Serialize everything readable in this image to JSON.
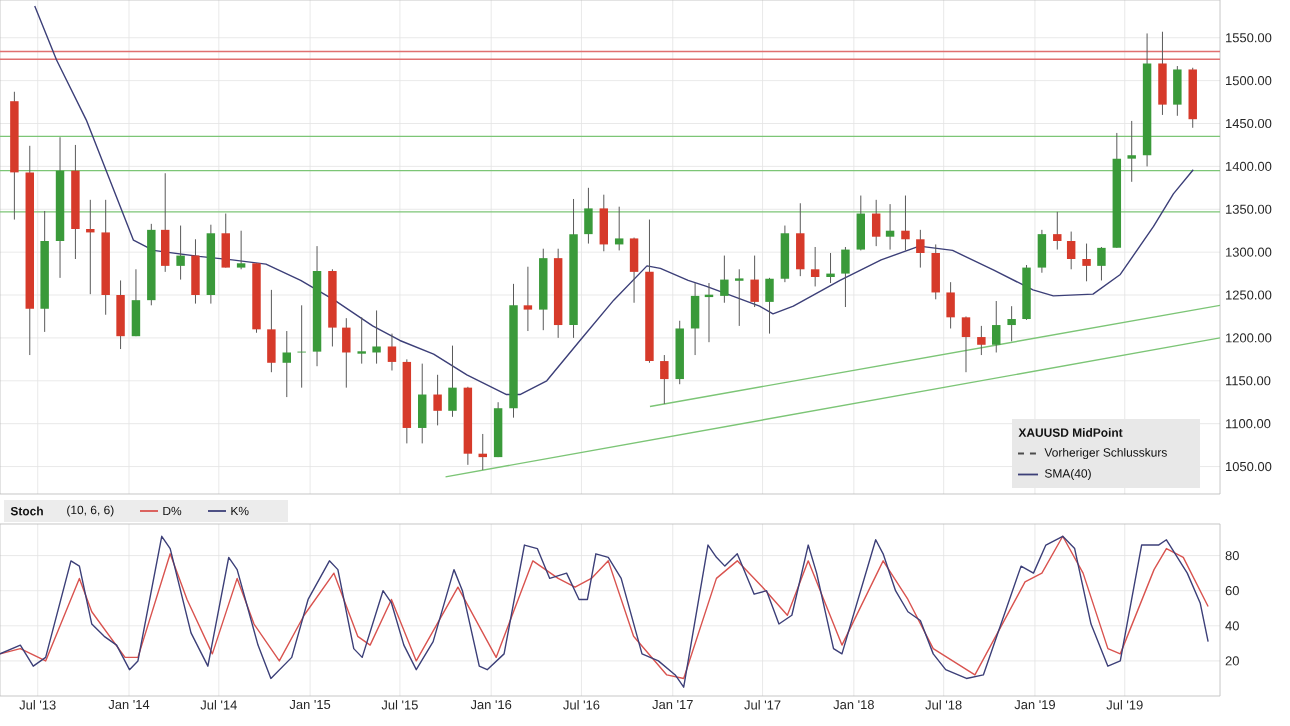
{
  "chart_data": [
    {
      "type": "candlestick",
      "legend_title": "XAUUSD MidPoint",
      "annotations": [
        "Vorheriger Schlusskurs"
      ],
      "legend": "bottom right",
      "grid": true,
      "tick_labels": "y",
      "xlim": [
        "2013-04-16",
        "2020-01-09"
      ],
      "ylim": [
        1018,
        1594
      ],
      "xticks": [
        {
          "value": "2013-07-01",
          "label": null
        },
        {
          "value": "2014-01-01",
          "label": null
        },
        {
          "value": "2014-07-01",
          "label": null
        },
        {
          "value": "2015-01-01",
          "label": null
        },
        {
          "value": "2015-07-01",
          "label": null
        },
        {
          "value": "2016-01-01",
          "label": null
        },
        {
          "value": "2016-07-01",
          "label": null
        },
        {
          "value": "2017-01-01",
          "label": null
        },
        {
          "value": "2017-07-01",
          "label": null
        },
        {
          "value": "2018-01-01",
          "label": null
        },
        {
          "value": "2018-07-01",
          "label": null
        },
        {
          "value": "2019-01-01",
          "label": null
        },
        {
          "value": "2019-07-01",
          "label": null
        }
      ],
      "yticks": [
        {
          "value": 1050,
          "label": "1050.00"
        },
        {
          "value": 1100,
          "label": "1100.00"
        },
        {
          "value": 1150,
          "label": "1150.00"
        },
        {
          "value": 1200,
          "label": "1200.00"
        },
        {
          "value": 1250,
          "label": "1250.00"
        },
        {
          "value": 1300,
          "label": "1300.00"
        },
        {
          "value": 1350,
          "label": "1350.00"
        },
        {
          "value": 1400,
          "label": "1400.00"
        },
        {
          "value": 1450,
          "label": "1450.00"
        },
        {
          "value": 1500,
          "label": "1500.00"
        },
        {
          "value": 1550,
          "label": "1550.00"
        }
      ],
      "x": [
        "2013-05-15",
        "2013-06-15",
        "2013-07-15",
        "2013-08-15",
        "2013-09-15",
        "2013-10-15",
        "2013-11-15",
        "2013-12-15",
        "2014-01-15",
        "2014-02-15",
        "2014-03-15",
        "2014-04-15",
        "2014-05-15",
        "2014-06-15",
        "2014-07-15",
        "2014-08-15",
        "2014-09-15",
        "2014-10-15",
        "2014-11-15",
        "2014-12-15",
        "2015-01-15",
        "2015-02-15",
        "2015-03-15",
        "2015-04-15",
        "2015-05-15",
        "2015-06-15",
        "2015-07-15",
        "2015-08-15",
        "2015-09-15",
        "2015-10-15",
        "2015-11-15",
        "2015-12-15",
        "2016-01-15",
        "2016-02-15",
        "2016-03-15",
        "2016-04-15",
        "2016-05-15",
        "2016-06-15",
        "2016-07-15",
        "2016-08-15",
        "2016-09-15",
        "2016-10-15",
        "2016-11-15",
        "2016-12-15",
        "2017-01-15",
        "2017-02-15",
        "2017-03-15",
        "2017-04-15",
        "2017-05-15",
        "2017-06-15",
        "2017-07-15",
        "2017-08-15",
        "2017-09-15",
        "2017-10-15",
        "2017-11-15",
        "2017-12-15",
        "2018-01-15",
        "2018-02-15",
        "2018-03-15",
        "2018-04-15",
        "2018-05-15",
        "2018-06-15",
        "2018-07-15",
        "2018-08-15",
        "2018-09-15",
        "2018-10-15",
        "2018-11-15",
        "2018-12-15",
        "2019-01-15",
        "2019-02-15",
        "2019-03-15",
        "2019-04-15",
        "2019-05-15",
        "2019-06-15",
        "2019-07-15",
        "2019-08-15",
        "2019-09-15",
        "2019-10-15",
        "2019-11-15"
      ],
      "ohlc": [
        [
          1476,
          1487,
          1338,
          1393
        ],
        [
          1393,
          1424,
          1180,
          1234
        ],
        [
          1234,
          1348,
          1207,
          1313
        ],
        [
          1313,
          1434,
          1270,
          1395
        ],
        [
          1395,
          1425,
          1292,
          1327
        ],
        [
          1327,
          1361,
          1251,
          1323
        ],
        [
          1323,
          1361,
          1227,
          1250
        ],
        [
          1250,
          1267,
          1187,
          1202
        ],
        [
          1202,
          1280,
          1202,
          1244
        ],
        [
          1244,
          1333,
          1238,
          1326
        ],
        [
          1326,
          1392,
          1277,
          1284
        ],
        [
          1284,
          1331,
          1268,
          1296
        ],
        [
          1296,
          1315,
          1240,
          1250
        ],
        [
          1250,
          1332,
          1240,
          1322
        ],
        [
          1322,
          1345,
          1282,
          1282
        ],
        [
          1282,
          1325,
          1280,
          1287
        ],
        [
          1287,
          1287,
          1206,
          1210
        ],
        [
          1210,
          1256,
          1160,
          1171
        ],
        [
          1171,
          1208,
          1131,
          1183
        ],
        [
          1183,
          1238,
          1142,
          1184
        ],
        [
          1184,
          1307,
          1167,
          1278
        ],
        [
          1278,
          1280,
          1190,
          1212
        ],
        [
          1212,
          1223,
          1142,
          1183
        ],
        [
          1183,
          1224,
          1170,
          1183
        ],
        [
          1183,
          1232,
          1170,
          1190
        ],
        [
          1190,
          1205,
          1162,
          1172
        ],
        [
          1172,
          1175,
          1077,
          1095
        ],
        [
          1095,
          1170,
          1077,
          1134
        ],
        [
          1134,
          1157,
          1098,
          1115
        ],
        [
          1115,
          1191,
          1108,
          1142
        ],
        [
          1142,
          1143,
          1052,
          1065
        ],
        [
          1065,
          1088,
          1046,
          1061
        ],
        [
          1061,
          1125,
          1061,
          1118
        ],
        [
          1118,
          1263,
          1107,
          1238
        ],
        [
          1238,
          1283,
          1208,
          1233
        ],
        [
          1233,
          1304,
          1209,
          1293
        ],
        [
          1293,
          1304,
          1200,
          1215
        ],
        [
          1215,
          1362,
          1200,
          1321
        ],
        [
          1321,
          1375,
          1310,
          1351
        ],
        [
          1351,
          1367,
          1301,
          1309
        ],
        [
          1309,
          1353,
          1302,
          1316
        ],
        [
          1316,
          1317,
          1241,
          1277
        ],
        [
          1277,
          1338,
          1171,
          1173
        ],
        [
          1173,
          1180,
          1123,
          1152
        ],
        [
          1152,
          1220,
          1146,
          1211
        ],
        [
          1211,
          1264,
          1180,
          1249
        ],
        [
          1249,
          1264,
          1195,
          1249
        ],
        [
          1249,
          1296,
          1241,
          1268
        ],
        [
          1268,
          1280,
          1214,
          1268
        ],
        [
          1268,
          1296,
          1236,
          1242
        ],
        [
          1242,
          1270,
          1205,
          1269
        ],
        [
          1269,
          1331,
          1265,
          1322
        ],
        [
          1322,
          1357,
          1272,
          1280
        ],
        [
          1280,
          1306,
          1260,
          1271
        ],
        [
          1271,
          1299,
          1264,
          1275
        ],
        [
          1275,
          1306,
          1236,
          1303
        ],
        [
          1303,
          1366,
          1302,
          1345
        ],
        [
          1345,
          1361,
          1307,
          1318
        ],
        [
          1318,
          1356,
          1303,
          1325
        ],
        [
          1325,
          1366,
          1302,
          1315
        ],
        [
          1315,
          1326,
          1282,
          1299
        ],
        [
          1299,
          1309,
          1245,
          1253
        ],
        [
          1253,
          1265,
          1211,
          1224
        ],
        [
          1224,
          1225,
          1160,
          1201
        ],
        [
          1201,
          1214,
          1180,
          1192
        ],
        [
          1192,
          1243,
          1183,
          1215
        ],
        [
          1215,
          1237,
          1196,
          1222
        ],
        [
          1222,
          1285,
          1221,
          1282
        ],
        [
          1282,
          1326,
          1276,
          1321
        ],
        [
          1321,
          1347,
          1303,
          1313
        ],
        [
          1313,
          1324,
          1280,
          1292
        ],
        [
          1292,
          1310,
          1266,
          1284
        ],
        [
          1284,
          1306,
          1267,
          1305
        ],
        [
          1305,
          1439,
          1305,
          1409
        ],
        [
          1409,
          1453,
          1382,
          1413
        ],
        [
          1413,
          1555,
          1400,
          1520
        ],
        [
          1520,
          1557,
          1460,
          1472
        ],
        [
          1472,
          1517,
          1459,
          1513
        ],
        [
          1513,
          1515,
          1445,
          1455
        ]
      ],
      "series": [
        {
          "name": "SMA(40)",
          "type": "line",
          "color": "#3c3f78",
          "x": [
            "2013-06-25",
            "2013-08-08",
            "2013-10-07",
            "2014-01-10",
            "2014-02-19",
            "2014-05-22",
            "2014-07-28",
            "2014-10-04",
            "2014-12-13",
            "2015-02-19",
            "2015-05-07",
            "2015-07-01",
            "2015-09-07",
            "2015-11-13",
            "2016-02-01",
            "2016-02-28",
            "2016-04-22",
            "2016-06-28",
            "2016-09-04",
            "2016-11-10",
            "2016-12-07",
            "2017-02-01",
            "2017-03-10",
            "2017-06-25",
            "2017-07-22",
            "2017-09-01",
            "2017-12-04",
            "2018-02-25",
            "2018-05-13",
            "2018-07-19",
            "2018-10-10",
            "2018-12-28",
            "2019-02-07",
            "2019-04-28",
            "2019-06-22",
            "2019-08-28",
            "2019-10-07",
            "2019-11-16"
          ],
          "values": [
            1587,
            1524,
            1454,
            1314,
            1302,
            1295,
            1291,
            1286,
            1267,
            1244,
            1214,
            1197,
            1181,
            1157,
            1134,
            1134,
            1150,
            1197,
            1244,
            1284,
            1281,
            1267,
            1260,
            1237,
            1228,
            1237,
            1267,
            1291,
            1307,
            1302,
            1279,
            1256,
            1249,
            1251,
            1274,
            1330,
            1368,
            1396
          ]
        },
        {
          "type": "line",
          "color": "#7cc576",
          "x": [
            "2015-10-01",
            "2020-01-09"
          ],
          "values": [
            1038,
            1200
          ]
        },
        {
          "type": "line",
          "color": "#7cc576",
          "x": [
            "2016-11-16",
            "2020-01-09"
          ],
          "values": [
            1120,
            1238
          ]
        }
      ],
      "ref_lines": [
        {
          "axis": "y",
          "value": 1534,
          "color": "#e07070"
        },
        {
          "axis": "y",
          "value": 1525,
          "color": "#e07070"
        },
        {
          "axis": "y",
          "value": 1435,
          "color": "#7cc576"
        },
        {
          "axis": "y",
          "value": 1395,
          "color": "#7cc576"
        },
        {
          "axis": "y",
          "value": 1347,
          "color": "#7cc576"
        }
      ]
    },
    {
      "type": "line",
      "title": "Stoch",
      "subtitle": "(10, 6, 6)",
      "legend": "top left",
      "grid": true,
      "xlim": [
        "2013-04-16",
        "2020-01-09"
      ],
      "ylim": [
        0,
        98
      ],
      "yticks": [
        20,
        40,
        60,
        80
      ],
      "xticks": [
        {
          "value": "2013-07-01",
          "label": "Jul '13"
        },
        {
          "value": "2014-01-01",
          "label": "Jan '14"
        },
        {
          "value": "2014-07-01",
          "label": "Jul '14"
        },
        {
          "value": "2015-01-01",
          "label": "Jan '15"
        },
        {
          "value": "2015-07-01",
          "label": "Jul '15"
        },
        {
          "value": "2016-01-01",
          "label": "Jan '16"
        },
        {
          "value": "2016-07-01",
          "label": "Jul '16"
        },
        {
          "value": "2017-01-01",
          "label": "Jan '17"
        },
        {
          "value": "2017-07-01",
          "label": "Jul '17"
        },
        {
          "value": "2018-01-01",
          "label": "Jan '18"
        },
        {
          "value": "2018-07-01",
          "label": "Jul '18"
        },
        {
          "value": "2019-01-01",
          "label": "Jan '19"
        },
        {
          "value": "2019-07-01",
          "label": "Jul '19"
        }
      ],
      "series": [
        {
          "name": "D%",
          "color": "#d9534f",
          "x": [
            "2013-04-16",
            "2013-05-27",
            "2013-07-17",
            "2013-09-23",
            "2013-10-18",
            "2013-12-24",
            "2014-01-19",
            "2014-03-25",
            "2014-04-28",
            "2014-06-18",
            "2014-08-07",
            "2014-09-10",
            "2014-10-31",
            "2014-12-20",
            "2015-02-18",
            "2015-04-07",
            "2015-05-02",
            "2015-06-14",
            "2015-08-03",
            "2015-10-26",
            "2016-01-11",
            "2016-03-25",
            "2016-05-15",
            "2016-06-18",
            "2016-07-21",
            "2016-08-24",
            "2016-10-14",
            "2016-12-20",
            "2017-01-23",
            "2017-03-30",
            "2017-05-11",
            "2017-07-01",
            "2017-08-20",
            "2017-10-01",
            "2017-12-08",
            "2018-03-01",
            "2018-04-20",
            "2018-06-10",
            "2018-09-02",
            "2018-12-12",
            "2019-01-15",
            "2019-02-26",
            "2019-04-08",
            "2019-05-28",
            "2019-06-22",
            "2019-08-29",
            "2019-09-23",
            "2019-10-27",
            "2019-12-16"
          ],
          "values": [
            24,
            27,
            20,
            67,
            48,
            22,
            22,
            81,
            55,
            24,
            67,
            41,
            20,
            46,
            70,
            34,
            29,
            55,
            20,
            62,
            22,
            77,
            67,
            62,
            67,
            77,
            34,
            12,
            10,
            67,
            77,
            62,
            46,
            77,
            29,
            77,
            55,
            27,
            12,
            65,
            70,
            91,
            70,
            27,
            24,
            72,
            84,
            79,
            51
          ]
        },
        {
          "name": "K%",
          "color": "#3c3f78",
          "x": [
            "2013-04-16",
            "2013-05-27",
            "2013-06-22",
            "2013-07-17",
            "2013-09-06",
            "2013-09-23",
            "2013-10-18",
            "2013-11-12",
            "2013-12-07",
            "2014-01-02",
            "2014-01-19",
            "2014-03-08",
            "2014-03-25",
            "2014-05-06",
            "2014-06-09",
            "2014-07-21",
            "2014-08-07",
            "2014-09-18",
            "2014-10-14",
            "2014-11-25",
            "2014-12-28",
            "2015-02-09",
            "2015-02-26",
            "2015-03-30",
            "2015-04-16",
            "2015-05-28",
            "2015-06-14",
            "2015-07-09",
            "2015-08-03",
            "2015-09-06",
            "2015-10-18",
            "2015-11-04",
            "2015-12-08",
            "2015-12-24",
            "2016-01-27",
            "2016-03-08",
            "2016-04-03",
            "2016-04-28",
            "2016-06-01",
            "2016-06-26",
            "2016-07-13",
            "2016-07-30",
            "2016-08-24",
            "2016-09-19",
            "2016-10-31",
            "2016-12-03",
            "2017-01-06",
            "2017-01-23",
            "2017-03-13",
            "2017-03-30",
            "2017-04-16",
            "2017-05-11",
            "2017-06-14",
            "2017-07-09",
            "2017-08-03",
            "2017-08-29",
            "2017-10-01",
            "2017-10-18",
            "2017-11-21",
            "2017-12-08",
            "2018-02-14",
            "2018-03-01",
            "2018-03-26",
            "2018-04-20",
            "2018-05-15",
            "2018-06-10",
            "2018-07-05",
            "2018-08-16",
            "2018-09-19",
            "2018-12-04",
            "2018-12-29",
            "2019-01-23",
            "2019-02-26",
            "2019-03-22",
            "2019-04-24",
            "2019-05-28",
            "2019-06-22",
            "2019-08-04",
            "2019-09-07",
            "2019-09-23",
            "2019-11-04",
            "2019-11-30",
            "2019-12-16"
          ],
          "values": [
            24,
            29,
            17,
            22,
            77,
            74,
            41,
            34,
            29,
            15,
            20,
            91,
            84,
            36,
            17,
            79,
            72,
            29,
            10,
            22,
            55,
            77,
            72,
            27,
            22,
            60,
            53,
            29,
            15,
            31,
            72,
            60,
            17,
            15,
            24,
            86,
            84,
            67,
            70,
            55,
            55,
            81,
            79,
            67,
            24,
            20,
            12,
            5,
            86,
            79,
            74,
            81,
            58,
            60,
            41,
            46,
            86,
            70,
            27,
            24,
            89,
            81,
            60,
            48,
            43,
            24,
            15,
            10,
            12,
            74,
            70,
            86,
            91,
            84,
            41,
            17,
            20,
            86,
            86,
            89,
            70,
            53,
            31
          ]
        }
      ]
    }
  ]
}
